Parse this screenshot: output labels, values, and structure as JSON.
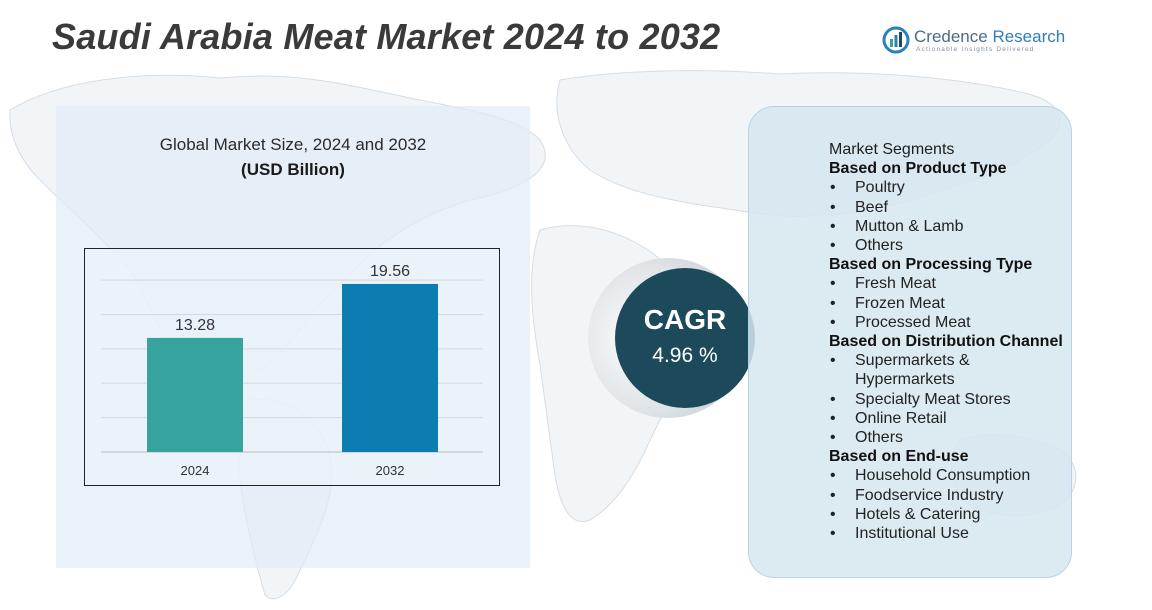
{
  "title": "Saudi Arabia Meat Market 2024 to 2032",
  "logo": {
    "icon": "credence-research-logo-icon",
    "name_part1": "Credence",
    "name_part2": "Research",
    "tagline": "Actionable Insights Delivered"
  },
  "chart_title": "Global Market Size,  2024 and 2032",
  "chart_unit": "(USD Billion)",
  "chart_data": {
    "type": "bar",
    "categories": [
      "2024",
      "2032"
    ],
    "values": [
      13.28,
      19.56
    ],
    "value_labels": [
      "13.28",
      "19.56"
    ],
    "colors": [
      "#36a39e",
      "#0b7db3"
    ],
    "ylim": [
      0,
      22
    ],
    "grid": true,
    "title": "Global Market Size,  2024 and 2032",
    "ylabel": "(USD Billion)",
    "xlabel": ""
  },
  "cagr": {
    "label": "CAGR",
    "value": "4.96 %"
  },
  "segments": {
    "heading": "Market Segments",
    "groups": [
      {
        "title": "Based on Product Type",
        "items": [
          "Poultry",
          "Beef",
          "Mutton & Lamb",
          "Others"
        ]
      },
      {
        "title": "Based on Processing Type",
        "items": [
          "Fresh Meat",
          "Frozen Meat",
          "Processed Meat"
        ]
      },
      {
        "title": "Based on Distribution Channel",
        "items": [
          "Supermarkets & Hypermarkets",
          "Specialty Meat Stores",
          "Online Retail",
          "Others"
        ]
      },
      {
        "title": "Based on End-use",
        "items": [
          "Household Consumption",
          "Foodservice Industry",
          "Hotels & Catering",
          "Institutional Use"
        ]
      }
    ]
  },
  "colors": {
    "title": "#3a3a3a",
    "cagr_circle": "#1d4a5a",
    "left_panel": "#e1ecf6",
    "right_panel": "#d6e6f0"
  }
}
